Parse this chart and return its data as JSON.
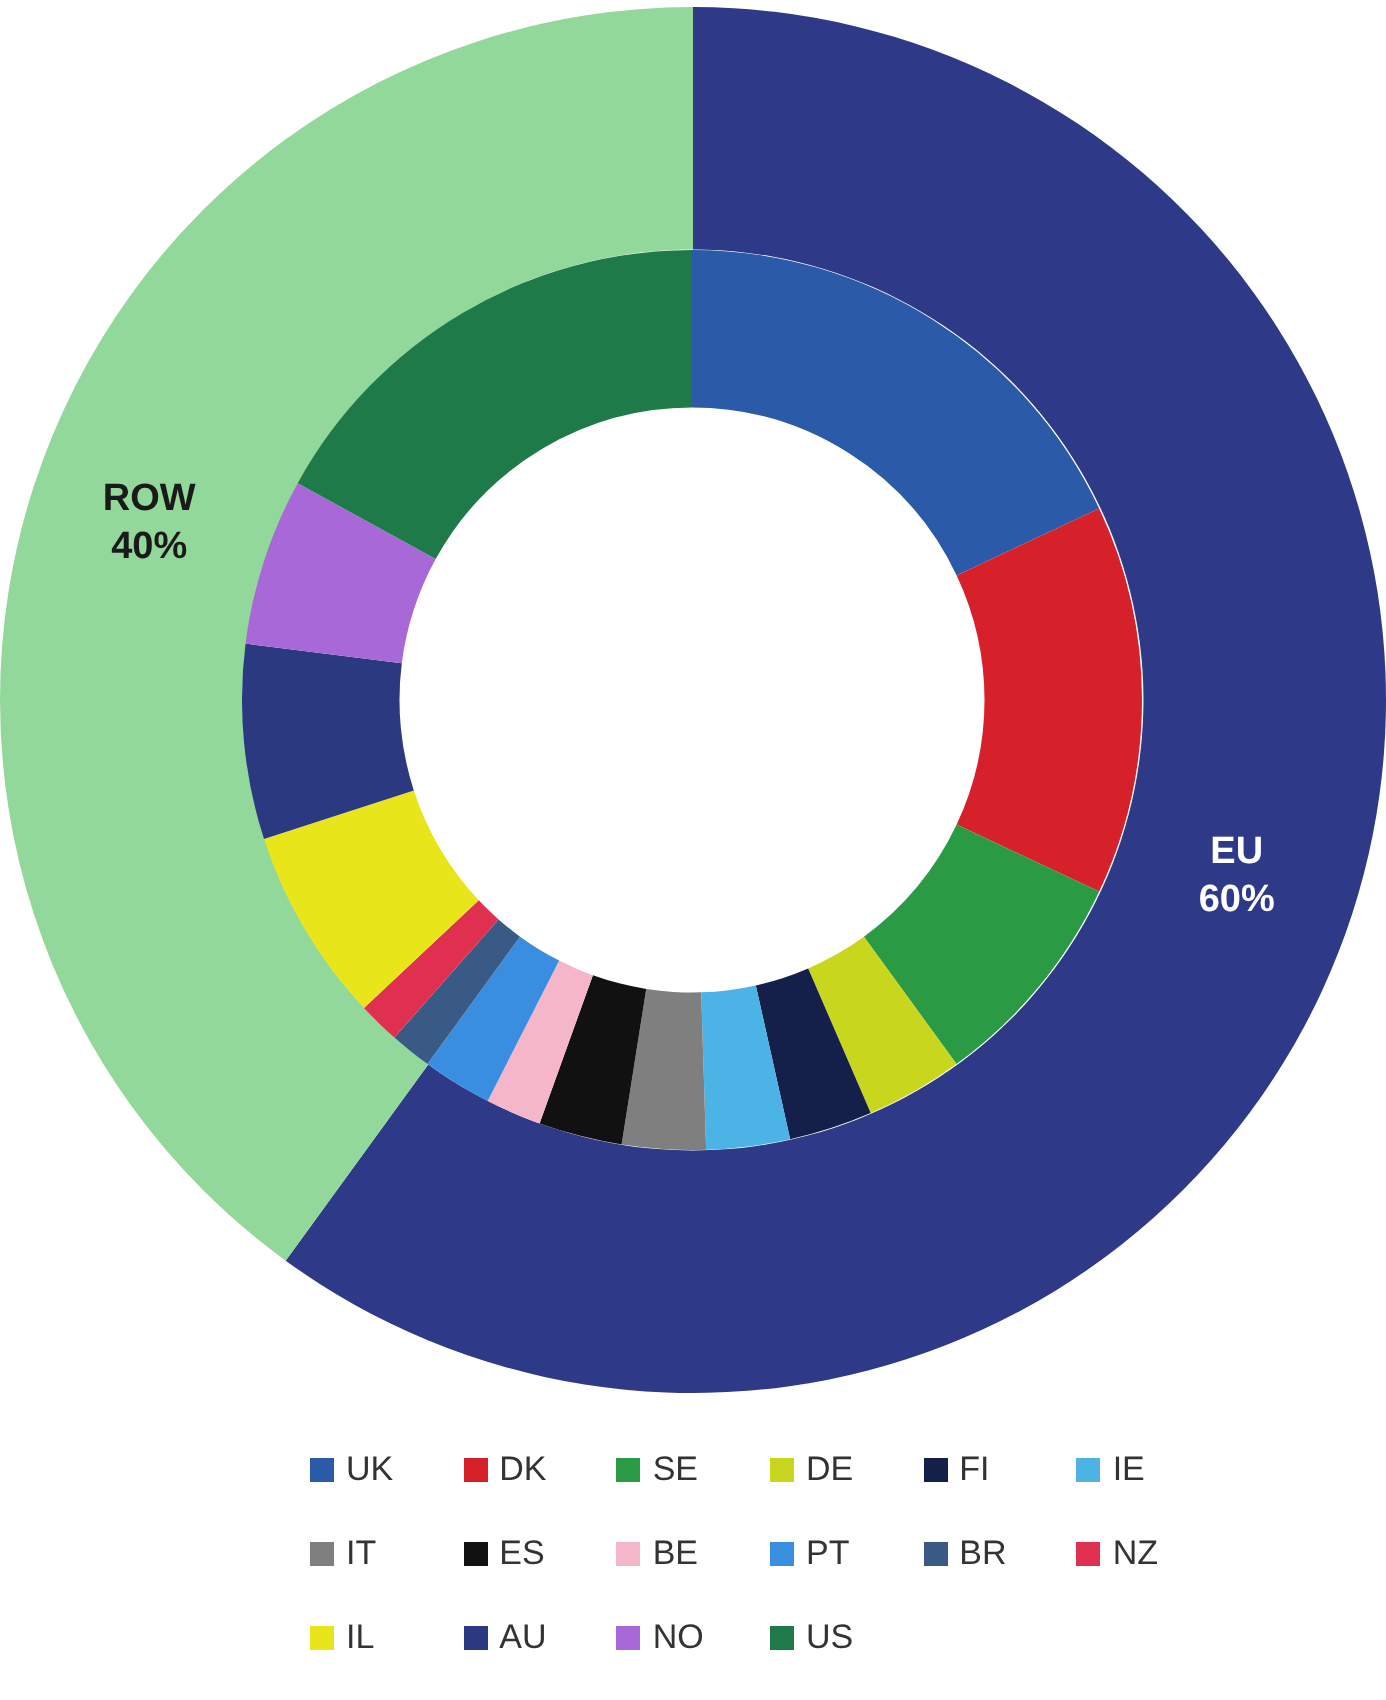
{
  "chart_data": [
    {
      "type": "donut",
      "categories": [
        "EU",
        "ROW"
      ],
      "values": [
        60,
        40
      ],
      "colors": [
        "#2e3a87",
        "#92d89a"
      ],
      "value_labels": [
        "60%",
        "40%"
      ],
      "legend": false
    },
    {
      "type": "donut",
      "categories": [
        "UK",
        "DK",
        "SE",
        "DE",
        "FI",
        "IE",
        "IT",
        "ES",
        "BE",
        "PT",
        "BR",
        "NZ",
        "IL",
        "AU",
        "NO",
        "US"
      ],
      "values": [
        18,
        14,
        8,
        3.5,
        3,
        3,
        3,
        3,
        2,
        2.5,
        1.5,
        1.5,
        7,
        7,
        6,
        17
      ],
      "colors": [
        "#2a5aa8",
        "#d7212a",
        "#2a9a45",
        "#c9d61e",
        "#14204a",
        "#4bb3e6",
        "#7f7f7f",
        "#111111",
        "#f4b6c8",
        "#3a8ee0",
        "#3a5a86",
        "#e03050",
        "#e8e61a",
        "#2b3a80",
        "#a868d8",
        "#1f7a4a"
      ],
      "legend": "bottom"
    }
  ]
}
